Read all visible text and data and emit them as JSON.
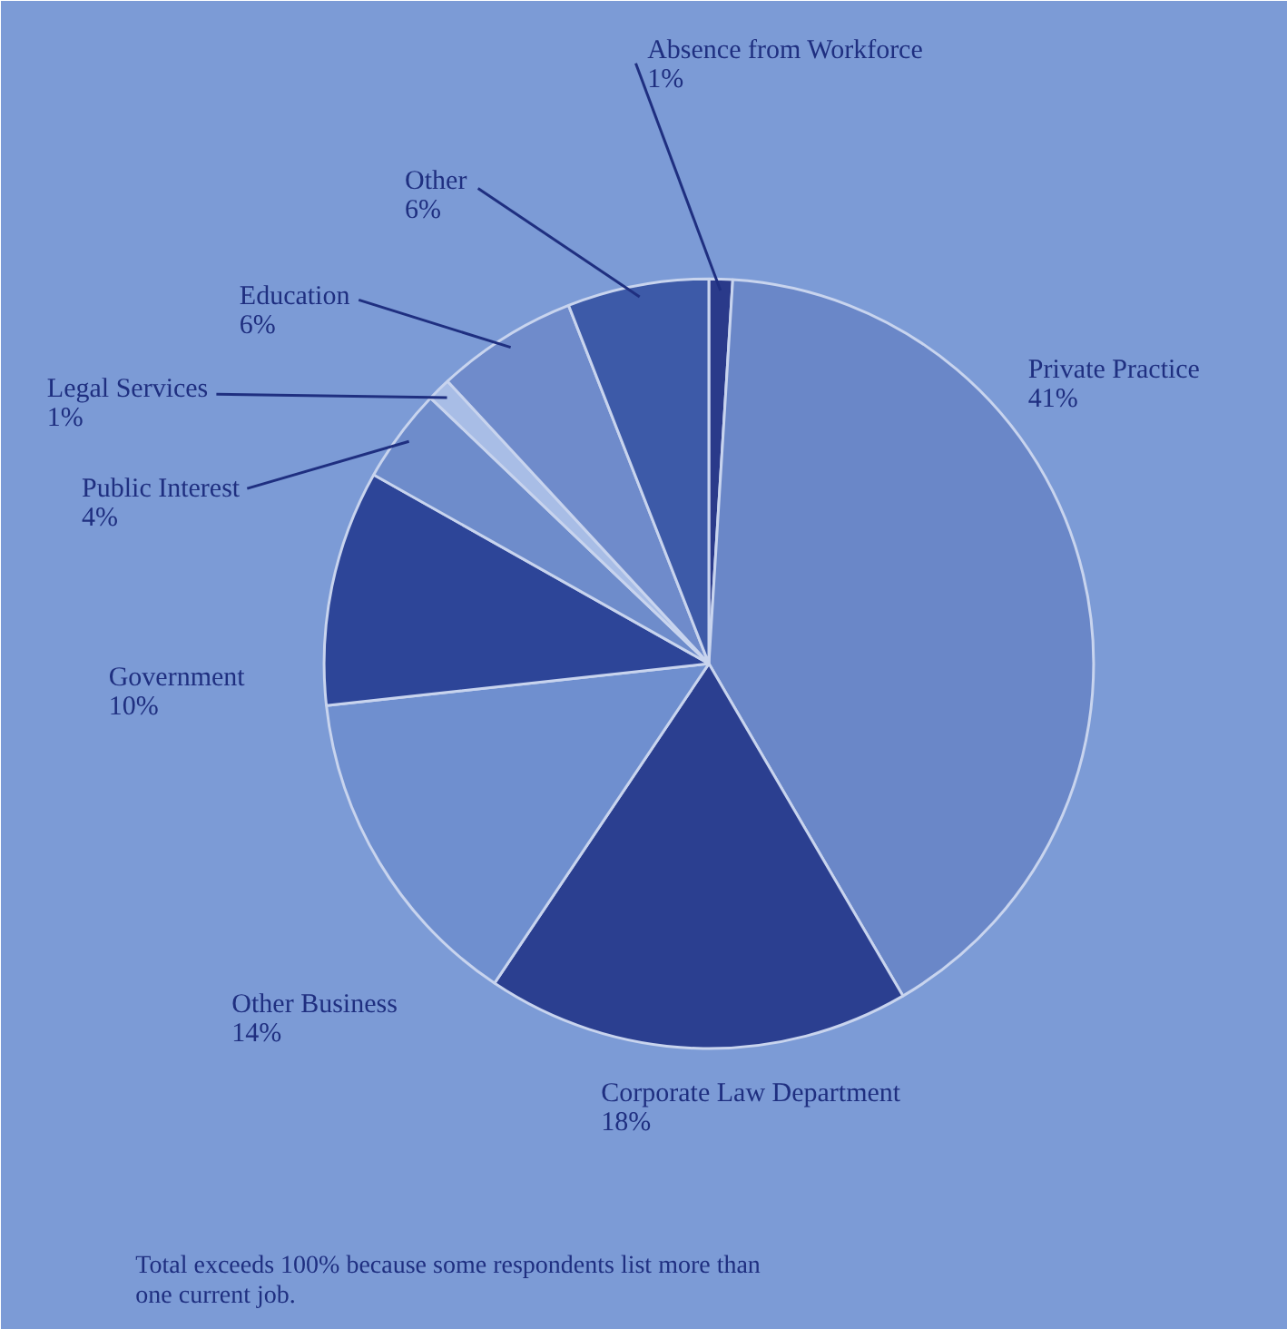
{
  "chart_data": {
    "type": "pie",
    "categories": [
      "Absence from Workforce",
      "Private Practice",
      "Corporate Law Department",
      "Other Business",
      "Government",
      "Public Interest",
      "Legal Services",
      "Education",
      "Other"
    ],
    "values": [
      1,
      41,
      18,
      14,
      10,
      4,
      1,
      6,
      6
    ],
    "value_labels": [
      "1%",
      "41%",
      "18%",
      "14%",
      "10%",
      "4%",
      "1%",
      "6%",
      "6%"
    ],
    "colors": [
      "#2a3a8a",
      "#6a87c8",
      "#2b3f90",
      "#6f8fcf",
      "#2d4598",
      "#6e8ccb",
      "#a8bde6",
      "#6f8bcb",
      "#3d5aa8"
    ],
    "annotations": [
      "Total exceeds 100% because some respondents list more than\none current job."
    ]
  }
}
